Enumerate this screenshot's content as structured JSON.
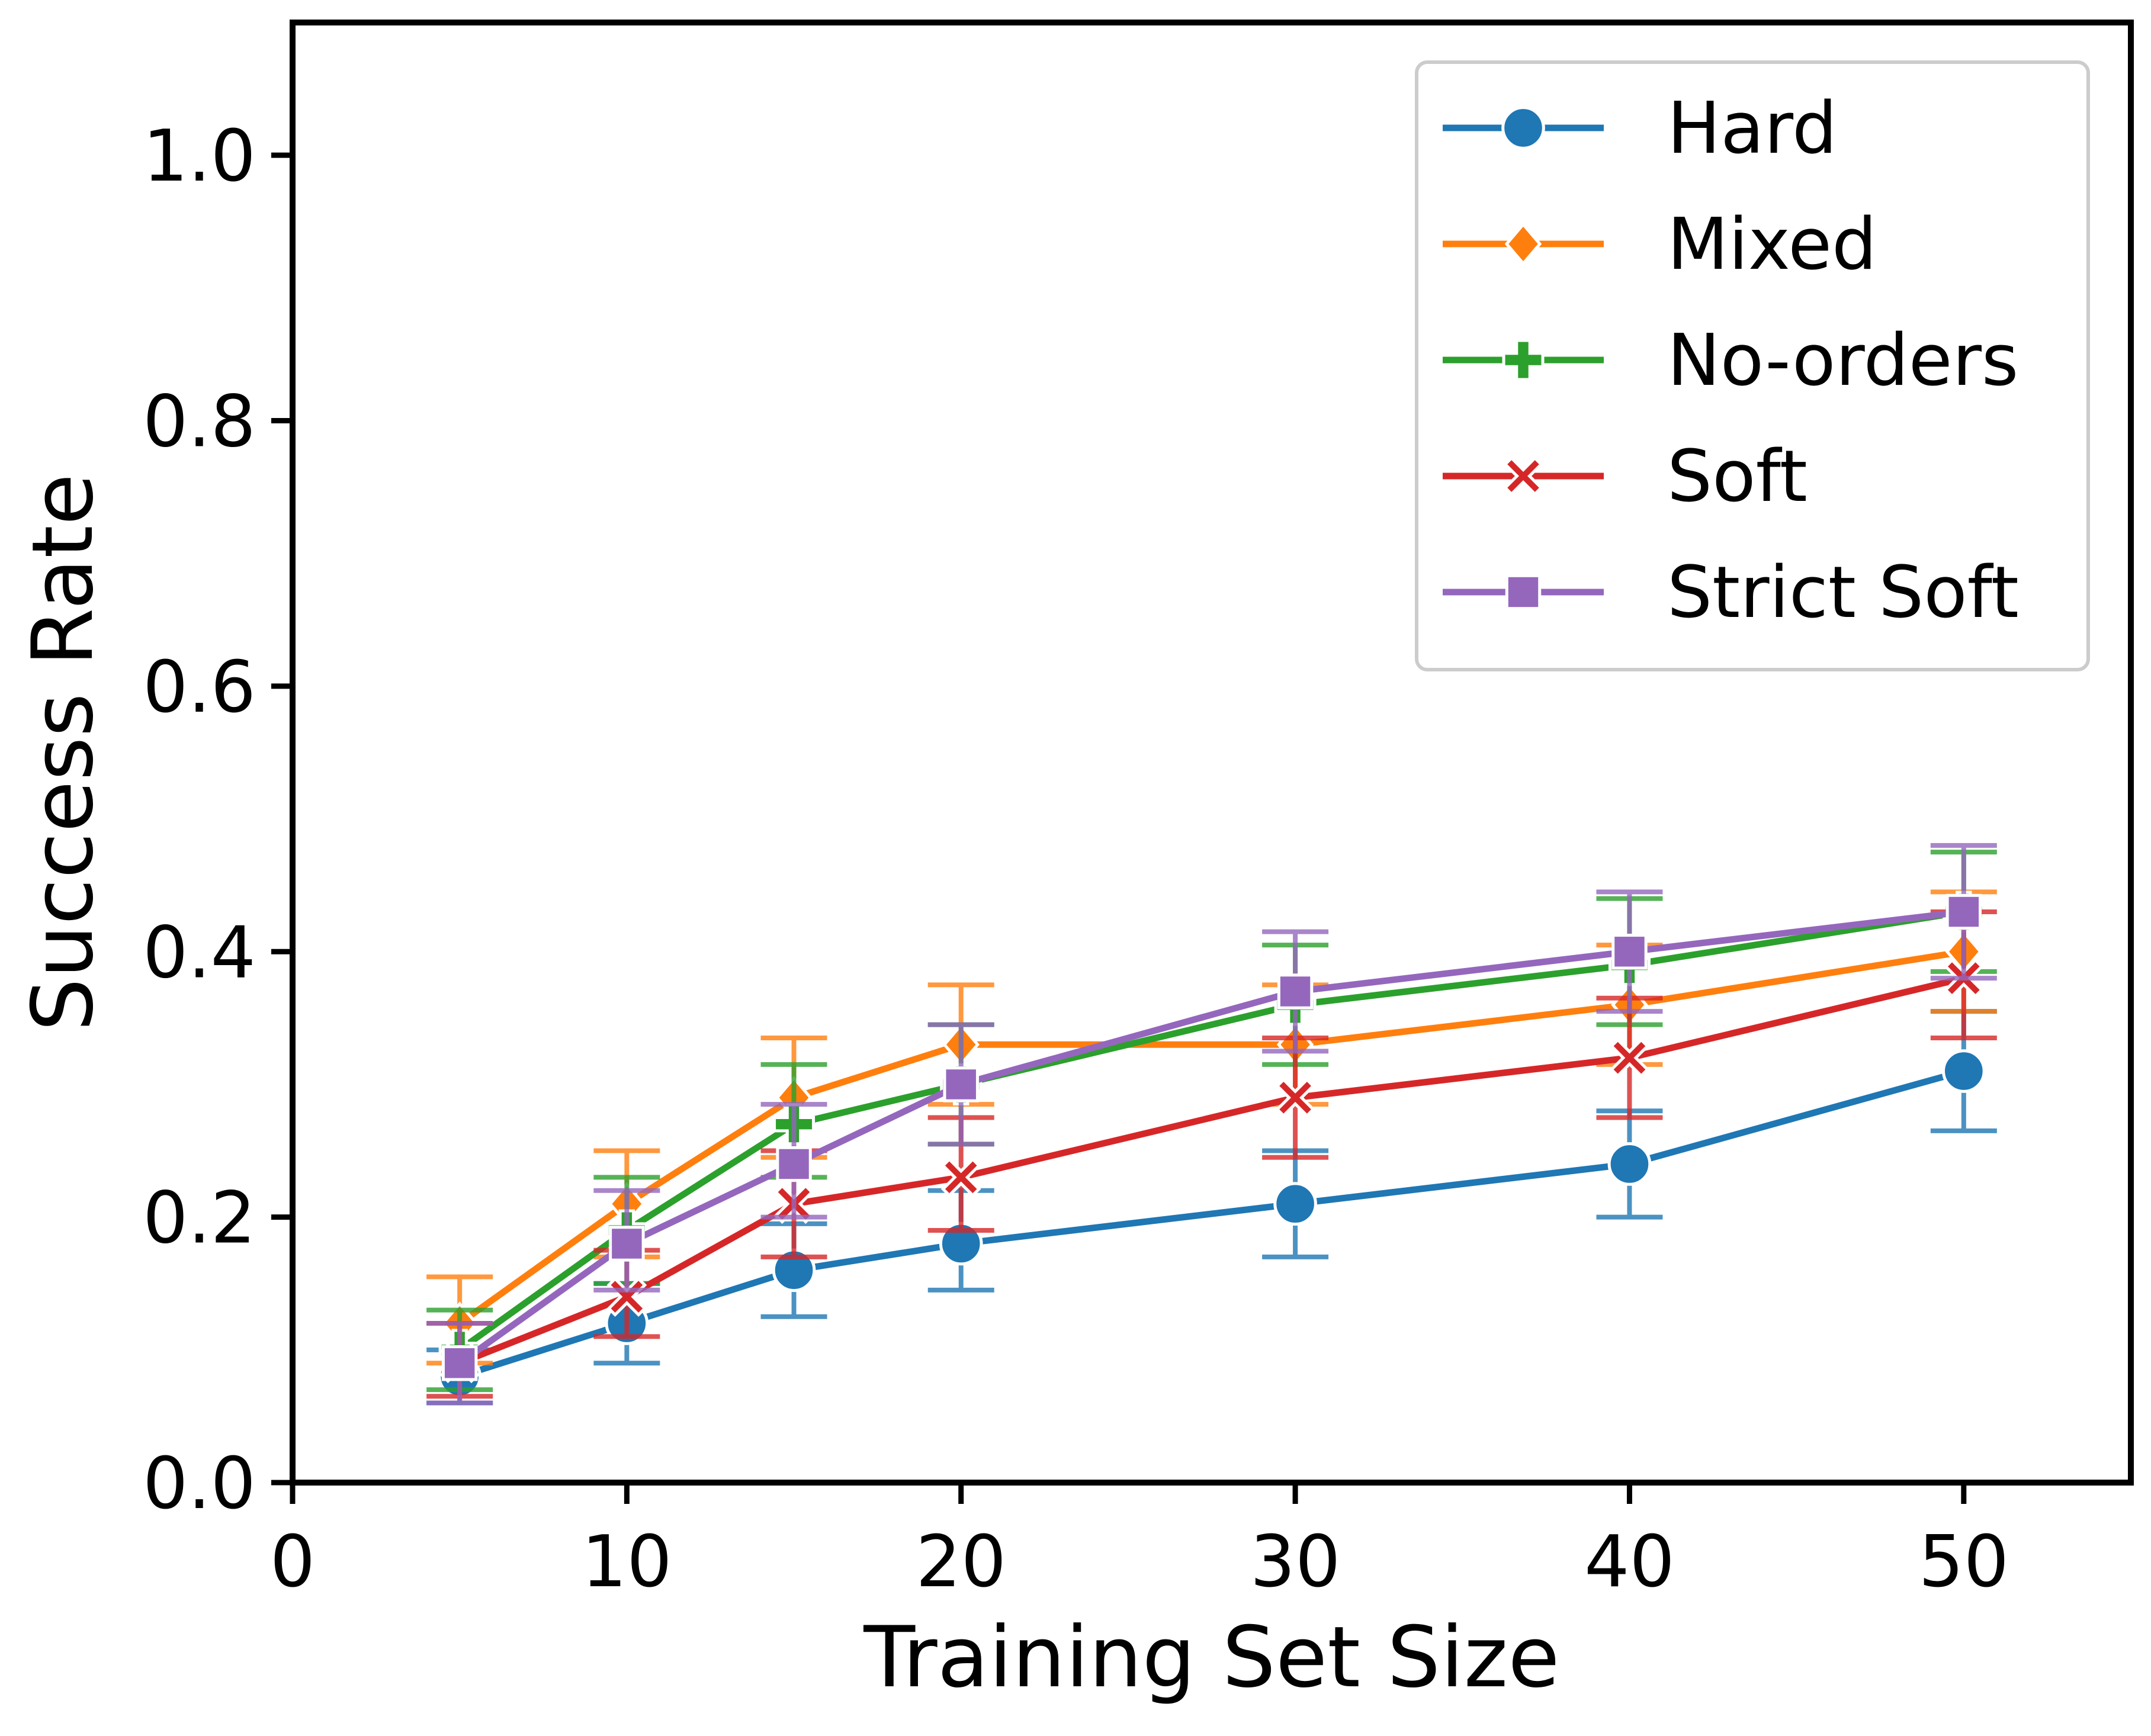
{
  "chart_data": {
    "type": "line",
    "xlabel": "Training Set Size",
    "ylabel": "Success Rate",
    "xlim": [
      0,
      55
    ],
    "ylim": [
      0,
      1.1
    ],
    "xticks": [
      0,
      10,
      20,
      30,
      40,
      50
    ],
    "xtick_labels": [
      "0",
      "10",
      "20",
      "30",
      "40",
      "50"
    ],
    "yticks": [
      0.0,
      0.2,
      0.4,
      0.6,
      0.8,
      1.0
    ],
    "ytick_labels": [
      "0.0",
      "0.2",
      "0.4",
      "0.6",
      "0.8",
      "1.0"
    ],
    "grid": false,
    "legend_position": "top-right",
    "x": [
      5,
      10,
      15,
      20,
      30,
      40,
      50
    ],
    "series": [
      {
        "name": "Hard",
        "color": "#1f77b4",
        "marker": "circle",
        "values": [
          0.08,
          0.12,
          0.16,
          0.18,
          0.21,
          0.24,
          0.31
        ],
        "err_low": [
          0.06,
          0.09,
          0.125,
          0.145,
          0.17,
          0.2,
          0.265
        ],
        "err_high": [
          0.1,
          0.15,
          0.195,
          0.22,
          0.25,
          0.28,
          0.355
        ]
      },
      {
        "name": "Mixed",
        "color": "#ff7f0e",
        "marker": "diamond",
        "values": [
          0.12,
          0.21,
          0.29,
          0.33,
          0.33,
          0.36,
          0.4
        ],
        "err_low": [
          0.09,
          0.17,
          0.245,
          0.285,
          0.285,
          0.315,
          0.355
        ],
        "err_high": [
          0.155,
          0.25,
          0.335,
          0.375,
          0.375,
          0.405,
          0.445
        ]
      },
      {
        "name": "No-orders",
        "color": "#2ca02c",
        "marker": "plus",
        "values": [
          0.1,
          0.19,
          0.27,
          0.3,
          0.36,
          0.39,
          0.43
        ],
        "err_low": [
          0.07,
          0.15,
          0.23,
          0.255,
          0.315,
          0.345,
          0.385
        ],
        "err_high": [
          0.13,
          0.23,
          0.315,
          0.345,
          0.405,
          0.44,
          0.475
        ]
      },
      {
        "name": "Soft",
        "color": "#d62728",
        "marker": "x",
        "values": [
          0.09,
          0.14,
          0.21,
          0.23,
          0.29,
          0.32,
          0.38
        ],
        "err_low": [
          0.065,
          0.11,
          0.17,
          0.19,
          0.245,
          0.275,
          0.335
        ],
        "err_high": [
          0.12,
          0.175,
          0.25,
          0.275,
          0.335,
          0.365,
          0.43
        ]
      },
      {
        "name": "Strict Soft",
        "color": "#9467bd",
        "marker": "square",
        "values": [
          0.09,
          0.18,
          0.24,
          0.3,
          0.37,
          0.4,
          0.43
        ],
        "err_low": [
          0.06,
          0.145,
          0.2,
          0.255,
          0.325,
          0.355,
          0.38
        ],
        "err_high": [
          0.12,
          0.22,
          0.285,
          0.345,
          0.415,
          0.445,
          0.48
        ]
      }
    ]
  }
}
